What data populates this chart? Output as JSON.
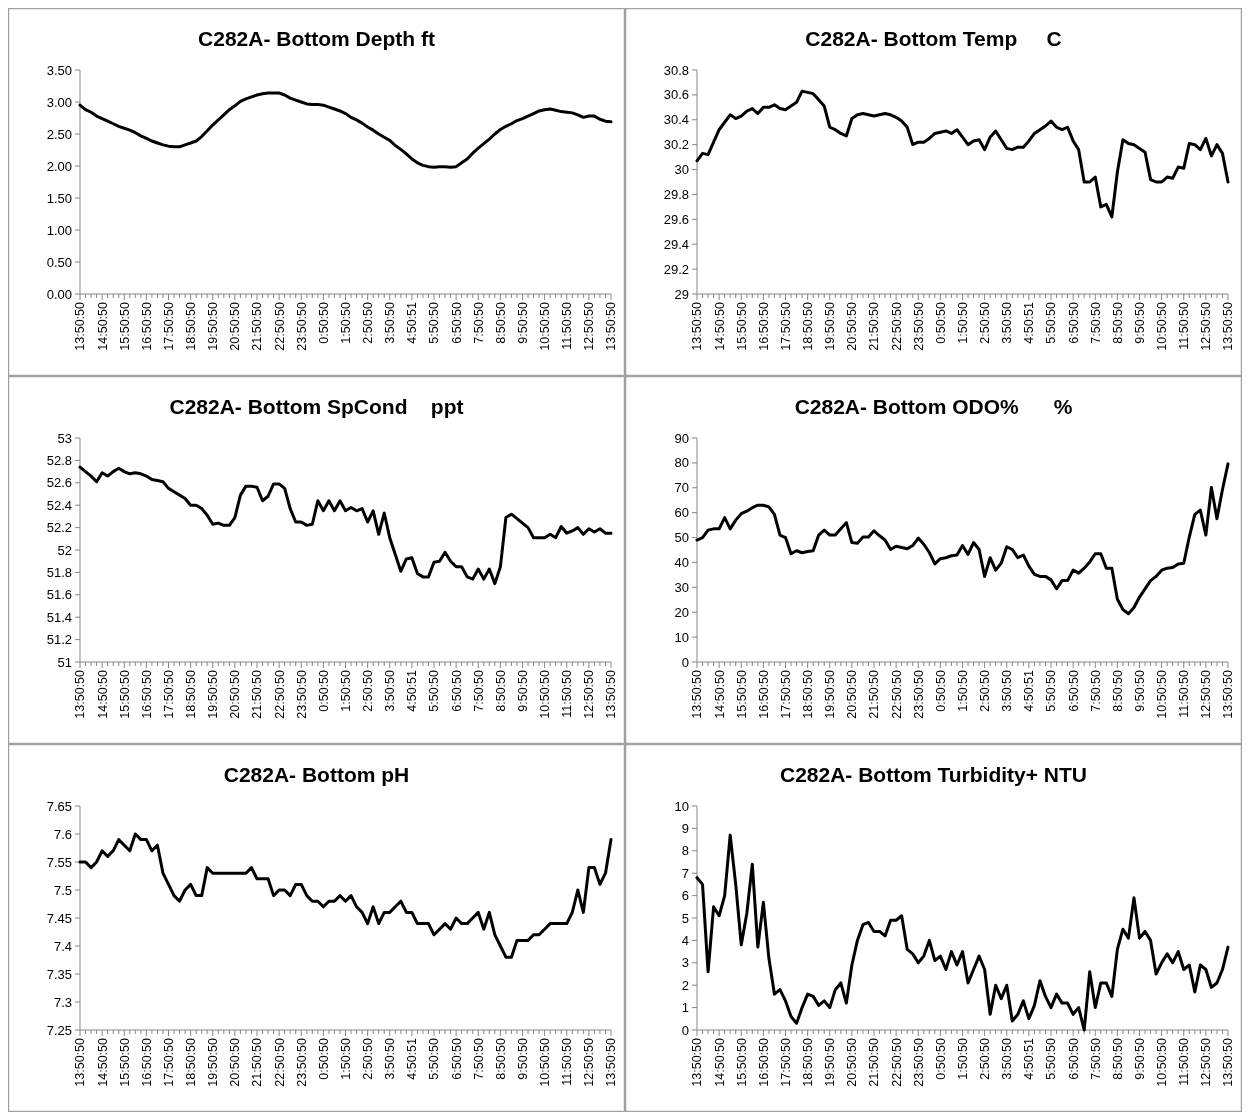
{
  "chart_data": [
    {
      "type": "line",
      "title": "C282A- Bottom Depth ft",
      "categories": [
        "13:50:50",
        null,
        null,
        null,
        "14:50:50",
        null,
        null,
        null,
        "15:50:50",
        null,
        null,
        null,
        "16:50:50",
        null,
        null,
        null,
        "17:50:50",
        null,
        null,
        null,
        "18:50:50",
        null,
        null,
        null,
        "19:50:50",
        null,
        null,
        null,
        "20:50:50",
        null,
        null,
        null,
        "21:50:50",
        null,
        null,
        null,
        "22:50:50",
        null,
        null,
        null,
        "23:50:50",
        null,
        null,
        null,
        "0:50:50",
        null,
        null,
        null,
        "1:50:50",
        null,
        null,
        null,
        "2:50:50",
        null,
        null,
        null,
        "3:50:50",
        null,
        null,
        null,
        "4:50:51",
        null,
        null,
        null,
        "5:50:50",
        null,
        null,
        null,
        "6:50:50",
        null,
        null,
        null,
        "7:50:50",
        null,
        null,
        null,
        "8:50:50",
        null,
        null,
        null,
        "9:50:50",
        null,
        null,
        null,
        "10:50:50",
        null,
        null,
        null,
        "11:50:50",
        null,
        null,
        null,
        "12:50:50",
        null,
        null,
        null,
        "13:50:50"
      ],
      "series": [
        {
          "color": "#000000",
          "values": [
            2.95,
            2.88,
            2.84,
            2.78,
            2.74,
            2.7,
            2.66,
            2.62,
            2.59,
            2.56,
            2.52,
            2.47,
            2.43,
            2.39,
            2.36,
            2.33,
            2.31,
            2.3,
            2.3,
            2.33,
            2.36,
            2.39,
            2.46,
            2.55,
            2.64,
            2.72,
            2.8,
            2.88,
            2.94,
            3.01,
            3.05,
            3.08,
            3.11,
            3.13,
            3.14,
            3.14,
            3.14,
            3.11,
            3.06,
            3.03,
            3.0,
            2.97,
            2.96,
            2.96,
            2.95,
            2.92,
            2.89,
            2.86,
            2.82,
            2.76,
            2.72,
            2.67,
            2.61,
            2.56,
            2.5,
            2.45,
            2.4,
            2.32,
            2.26,
            2.19,
            2.11,
            2.05,
            2.01,
            1.99,
            1.98,
            1.99,
            1.99,
            1.98,
            1.99,
            2.05,
            2.11,
            2.2,
            2.28,
            2.35,
            2.42,
            2.5,
            2.57,
            2.62,
            2.66,
            2.71,
            2.74,
            2.78,
            2.82,
            2.86,
            2.88,
            2.89,
            2.87,
            2.85,
            2.84,
            2.83,
            2.8,
            2.76,
            2.78,
            2.78,
            2.73,
            2.7,
            2.69
          ]
        }
      ],
      "ylim": [
        0,
        3.5
      ],
      "yticks": [
        {
          "value": 0,
          "label": "0.00"
        },
        {
          "value": 0.5,
          "label": "0.50"
        },
        {
          "value": 1,
          "label": "1.00"
        },
        {
          "value": 1.5,
          "label": "1.50"
        },
        {
          "value": 2,
          "label": "2.00"
        },
        {
          "value": 2.5,
          "label": "2.50"
        },
        {
          "value": 3,
          "label": "3.00"
        },
        {
          "value": 3.5,
          "label": "3.50"
        }
      ]
    },
    {
      "type": "line",
      "title": "C282A- Bottom Temp     C",
      "categories": [
        "13:50:50",
        null,
        null,
        null,
        "14:50:50",
        null,
        null,
        null,
        "15:50:50",
        null,
        null,
        null,
        "16:50:50",
        null,
        null,
        null,
        "17:50:50",
        null,
        null,
        null,
        "18:50:50",
        null,
        null,
        null,
        "19:50:50",
        null,
        null,
        null,
        "20:50:50",
        null,
        null,
        null,
        "21:50:50",
        null,
        null,
        null,
        "22:50:50",
        null,
        null,
        null,
        "23:50:50",
        null,
        null,
        null,
        "0:50:50",
        null,
        null,
        null,
        "1:50:50",
        null,
        null,
        null,
        "2:50:50",
        null,
        null,
        null,
        "3:50:50",
        null,
        null,
        null,
        "4:50:51",
        null,
        null,
        null,
        "5:50:50",
        null,
        null,
        null,
        "6:50:50",
        null,
        null,
        null,
        "7:50:50",
        null,
        null,
        null,
        "8:50:50",
        null,
        null,
        null,
        "9:50:50",
        null,
        null,
        null,
        "10:50:50",
        null,
        null,
        null,
        "11:50:50",
        null,
        null,
        null,
        "12:50:50",
        null,
        null,
        null,
        "13:50:50"
      ],
      "series": [
        {
          "color": "#000000",
          "values": [
            30.07,
            30.13,
            30.12,
            30.22,
            30.32,
            30.38,
            30.44,
            30.41,
            30.43,
            30.47,
            30.49,
            30.45,
            30.5,
            30.5,
            30.52,
            30.49,
            30.48,
            30.51,
            30.54,
            30.63,
            30.62,
            30.61,
            30.56,
            30.51,
            30.34,
            30.32,
            30.29,
            30.27,
            30.41,
            30.44,
            30.45,
            30.44,
            30.43,
            30.44,
            30.45,
            30.44,
            30.42,
            30.39,
            30.34,
            30.2,
            30.22,
            30.22,
            30.25,
            30.29,
            30.3,
            30.31,
            30.29,
            30.32,
            30.26,
            30.2,
            30.23,
            30.24,
            30.16,
            30.26,
            30.31,
            30.24,
            30.17,
            30.16,
            30.18,
            30.18,
            30.23,
            30.29,
            30.32,
            30.35,
            30.39,
            30.34,
            30.32,
            30.34,
            30.23,
            30.16,
            29.9,
            29.9,
            29.94,
            29.7,
            29.72,
            29.62,
            29.98,
            30.24,
            30.21,
            30.2,
            30.17,
            30.14,
            29.92,
            29.9,
            29.9,
            29.94,
            29.93,
            30.02,
            30.01,
            30.21,
            30.2,
            30.16,
            30.25,
            30.11,
            30.2,
            30.13,
            29.9
          ]
        }
      ],
      "ylim": [
        29,
        30.8
      ],
      "yticks": [
        29,
        29.2,
        29.4,
        29.6,
        29.8,
        30,
        30.2,
        30.4,
        30.6,
        30.8
      ]
    },
    {
      "type": "line",
      "title": "C282A- Bottom SpCond    ppt",
      "categories": [
        "13:50:50",
        null,
        null,
        null,
        "14:50:50",
        null,
        null,
        null,
        "15:50:50",
        null,
        null,
        null,
        "16:50:50",
        null,
        null,
        null,
        "17:50:50",
        null,
        null,
        null,
        "18:50:50",
        null,
        null,
        null,
        "19:50:50",
        null,
        null,
        null,
        "20:50:50",
        null,
        null,
        null,
        "21:50:50",
        null,
        null,
        null,
        "22:50:50",
        null,
        null,
        null,
        "23:50:50",
        null,
        null,
        null,
        "0:50:50",
        null,
        null,
        null,
        "1:50:50",
        null,
        null,
        null,
        "2:50:50",
        null,
        null,
        null,
        "3:50:50",
        null,
        null,
        null,
        "4:50:51",
        null,
        null,
        null,
        "5:50:50",
        null,
        null,
        null,
        "6:50:50",
        null,
        null,
        null,
        "7:50:50",
        null,
        null,
        null,
        "8:50:50",
        null,
        null,
        null,
        "9:50:50",
        null,
        null,
        null,
        "10:50:50",
        null,
        null,
        null,
        "11:50:50",
        null,
        null,
        null,
        "12:50:50",
        null,
        null,
        null,
        "13:50:50"
      ],
      "series": [
        {
          "color": "#000000",
          "values": [
            52.74,
            52.7,
            52.66,
            52.61,
            52.69,
            52.66,
            52.7,
            52.73,
            52.7,
            52.68,
            52.69,
            52.68,
            52.66,
            52.63,
            52.62,
            52.61,
            52.55,
            52.52,
            52.49,
            52.46,
            52.4,
            52.4,
            52.37,
            52.31,
            52.23,
            52.24,
            52.22,
            52.22,
            52.29,
            52.49,
            52.57,
            52.57,
            52.56,
            52.44,
            52.48,
            52.59,
            52.59,
            52.55,
            52.37,
            52.25,
            52.25,
            52.22,
            52.23,
            52.44,
            52.35,
            52.44,
            52.35,
            52.44,
            52.35,
            52.38,
            52.35,
            52.37,
            52.25,
            52.35,
            52.14,
            52.33,
            52.11,
            51.96,
            51.81,
            51.92,
            51.93,
            51.79,
            51.76,
            51.76,
            51.89,
            51.9,
            51.98,
            51.9,
            51.85,
            51.85,
            51.76,
            51.74,
            51.83,
            51.74,
            51.83,
            51.7,
            51.85,
            52.29,
            52.32,
            52.28,
            52.24,
            52.2,
            52.11,
            52.11,
            52.11,
            52.14,
            52.11,
            52.21,
            52.15,
            52.17,
            52.2,
            52.14,
            52.19,
            52.16,
            52.19,
            52.15,
            52.15
          ]
        }
      ],
      "ylim": [
        51,
        53
      ],
      "yticks": [
        51,
        51.2,
        51.4,
        51.6,
        51.8,
        52,
        52.2,
        52.4,
        52.6,
        52.8,
        53
      ]
    },
    {
      "type": "line",
      "title": "C282A- Bottom ODO%      %",
      "categories": [
        "13:50:50",
        null,
        null,
        null,
        "14:50:50",
        null,
        null,
        null,
        "15:50:50",
        null,
        null,
        null,
        "16:50:50",
        null,
        null,
        null,
        "17:50:50",
        null,
        null,
        null,
        "18:50:50",
        null,
        null,
        null,
        "19:50:50",
        null,
        null,
        null,
        "20:50:50",
        null,
        null,
        null,
        "21:50:50",
        null,
        null,
        null,
        "22:50:50",
        null,
        null,
        null,
        "23:50:50",
        null,
        null,
        null,
        "0:50:50",
        null,
        null,
        null,
        "1:50:50",
        null,
        null,
        null,
        "2:50:50",
        null,
        null,
        null,
        "3:50:50",
        null,
        null,
        null,
        "4:50:51",
        null,
        null,
        null,
        "5:50:50",
        null,
        null,
        null,
        "6:50:50",
        null,
        null,
        null,
        "7:50:50",
        null,
        null,
        null,
        "8:50:50",
        null,
        null,
        null,
        "9:50:50",
        null,
        null,
        null,
        "10:50:50",
        null,
        null,
        null,
        "11:50:50",
        null,
        null,
        null,
        "12:50:50",
        null,
        null,
        null,
        "13:50:50"
      ],
      "series": [
        {
          "color": "#000000",
          "values": [
            49,
            50,
            53,
            53.5,
            53.5,
            58,
            53.5,
            57,
            59.6,
            60.6,
            62,
            63,
            63,
            62.3,
            59.3,
            51,
            50,
            43.5,
            44.7,
            43.9,
            44.4,
            44.7,
            51,
            53,
            51,
            51,
            53.5,
            56,
            48,
            47.7,
            50.2,
            50.2,
            52.7,
            50.7,
            49,
            45.2,
            46.5,
            46,
            45.5,
            46.8,
            49.8,
            47.3,
            44,
            39.4,
            41.5,
            41.9,
            42.7,
            43,
            46.8,
            43.2,
            48,
            45.2,
            34.4,
            41.9,
            36.9,
            39.7,
            46.3,
            45.2,
            41.9,
            43,
            38.5,
            35.2,
            34.4,
            34.4,
            33,
            29.4,
            32.7,
            32.7,
            36.9,
            35.7,
            37.7,
            40.2,
            43.5,
            43.5,
            37.7,
            37.7,
            25.2,
            21.1,
            19.4,
            21.9,
            26.1,
            29.4,
            32.7,
            34.4,
            36.9,
            37.7,
            38,
            39.4,
            39.7,
            50.2,
            59.3,
            61,
            51,
            70.1,
            57.6,
            69.3,
            79.6
          ]
        }
      ],
      "ylim": [
        0,
        90
      ],
      "yticks": [
        0,
        10,
        20,
        30,
        40,
        50,
        60,
        70,
        80,
        90
      ]
    },
    {
      "type": "line",
      "title": "C282A- Bottom pH",
      "categories": [
        "13:50:50",
        null,
        null,
        null,
        "14:50:50",
        null,
        null,
        null,
        "15:50:50",
        null,
        null,
        null,
        "16:50:50",
        null,
        null,
        null,
        "17:50:50",
        null,
        null,
        null,
        "18:50:50",
        null,
        null,
        null,
        "19:50:50",
        null,
        null,
        null,
        "20:50:50",
        null,
        null,
        null,
        "21:50:50",
        null,
        null,
        null,
        "22:50:50",
        null,
        null,
        null,
        "23:50:50",
        null,
        null,
        null,
        "0:50:50",
        null,
        null,
        null,
        "1:50:50",
        null,
        null,
        null,
        "2:50:50",
        null,
        null,
        null,
        "3:50:50",
        null,
        null,
        null,
        "4:50:51",
        null,
        null,
        null,
        "5:50:50",
        null,
        null,
        null,
        "6:50:50",
        null,
        null,
        null,
        "7:50:50",
        null,
        null,
        null,
        "8:50:50",
        null,
        null,
        null,
        "9:50:50",
        null,
        null,
        null,
        "10:50:50",
        null,
        null,
        null,
        "11:50:50",
        null,
        null,
        null,
        "12:50:50",
        null,
        null,
        null,
        "13:50:50"
      ],
      "series": [
        {
          "color": "#000000",
          "values": [
            7.55,
            7.55,
            7.54,
            7.55,
            7.57,
            7.56,
            7.57,
            7.59,
            7.58,
            7.57,
            7.6,
            7.59,
            7.59,
            7.57,
            7.58,
            7.53,
            7.51,
            7.49,
            7.48,
            7.5,
            7.51,
            7.49,
            7.49,
            7.54,
            7.53,
            7.53,
            7.53,
            7.53,
            7.53,
            7.53,
            7.53,
            7.54,
            7.52,
            7.52,
            7.52,
            7.49,
            7.5,
            7.5,
            7.49,
            7.51,
            7.51,
            7.49,
            7.48,
            7.48,
            7.47,
            7.48,
            7.48,
            7.49,
            7.48,
            7.49,
            7.47,
            7.46,
            7.44,
            7.47,
            7.44,
            7.46,
            7.46,
            7.47,
            7.48,
            7.46,
            7.46,
            7.44,
            7.44,
            7.44,
            7.42,
            7.43,
            7.44,
            7.43,
            7.45,
            7.44,
            7.44,
            7.45,
            7.46,
            7.43,
            7.46,
            7.42,
            7.4,
            7.38,
            7.38,
            7.41,
            7.41,
            7.41,
            7.42,
            7.42,
            7.43,
            7.44,
            7.44,
            7.44,
            7.44,
            7.46,
            7.5,
            7.46,
            7.54,
            7.54,
            7.51,
            7.53,
            7.59
          ]
        }
      ],
      "ylim": [
        7.25,
        7.65
      ],
      "yticks": [
        7.25,
        7.3,
        7.35,
        7.4,
        7.45,
        7.5,
        7.55,
        7.6,
        7.65
      ]
    },
    {
      "type": "line",
      "title": "C282A- Bottom Turbidity+ NTU",
      "categories": [
        "13:50:50",
        null,
        null,
        null,
        "14:50:50",
        null,
        null,
        null,
        "15:50:50",
        null,
        null,
        null,
        "16:50:50",
        null,
        null,
        null,
        "17:50:50",
        null,
        null,
        null,
        "18:50:50",
        null,
        null,
        null,
        "19:50:50",
        null,
        null,
        null,
        "20:50:50",
        null,
        null,
        null,
        "21:50:50",
        null,
        null,
        null,
        "22:50:50",
        null,
        null,
        null,
        "23:50:50",
        null,
        null,
        null,
        "0:50:50",
        null,
        null,
        null,
        "1:50:50",
        null,
        null,
        null,
        "2:50:50",
        null,
        null,
        null,
        "3:50:50",
        null,
        null,
        null,
        "4:50:51",
        null,
        null,
        null,
        "5:50:50",
        null,
        null,
        null,
        "6:50:50",
        null,
        null,
        null,
        "7:50:50",
        null,
        null,
        null,
        "8:50:50",
        null,
        null,
        null,
        "9:50:50",
        null,
        null,
        null,
        "10:50:50",
        null,
        null,
        null,
        "11:50:50",
        null,
        null,
        null,
        "12:50:50",
        null,
        null,
        null,
        "13:50:50"
      ],
      "series": [
        {
          "color": "#000000",
          "values": [
            6.8,
            6.5,
            2.6,
            5.5,
            5.1,
            6.0,
            8.7,
            6.5,
            3.8,
            5.2,
            7.4,
            3.7,
            5.7,
            3.2,
            1.6,
            1.8,
            1.3,
            0.6,
            0.3,
            1.0,
            1.6,
            1.5,
            1.1,
            1.3,
            1.0,
            1.8,
            2.1,
            1.2,
            2.9,
            4.0,
            4.7,
            4.8,
            4.4,
            4.4,
            4.2,
            4.9,
            4.9,
            5.1,
            3.6,
            3.4,
            3.0,
            3.3,
            4.0,
            3.1,
            3.3,
            2.7,
            3.5,
            2.9,
            3.5,
            2.1,
            2.7,
            3.3,
            2.7,
            0.7,
            2.0,
            1.4,
            2.0,
            0.4,
            0.7,
            1.3,
            0.5,
            1.1,
            2.2,
            1.5,
            1.0,
            1.6,
            1.2,
            1.2,
            0.7,
            1.0,
            0.0,
            2.6,
            1.0,
            2.1,
            2.1,
            1.5,
            3.6,
            4.5,
            4.1,
            5.9,
            4.1,
            4.4,
            4.0,
            2.5,
            3.0,
            3.4,
            3.0,
            3.5,
            2.7,
            2.9,
            1.7,
            2.9,
            2.7,
            1.9,
            2.1,
            2.7,
            3.7
          ]
        }
      ],
      "ylim": [
        0,
        10
      ],
      "yticks": [
        0,
        1,
        2,
        3,
        4,
        5,
        6,
        7,
        8,
        9,
        10
      ]
    }
  ]
}
